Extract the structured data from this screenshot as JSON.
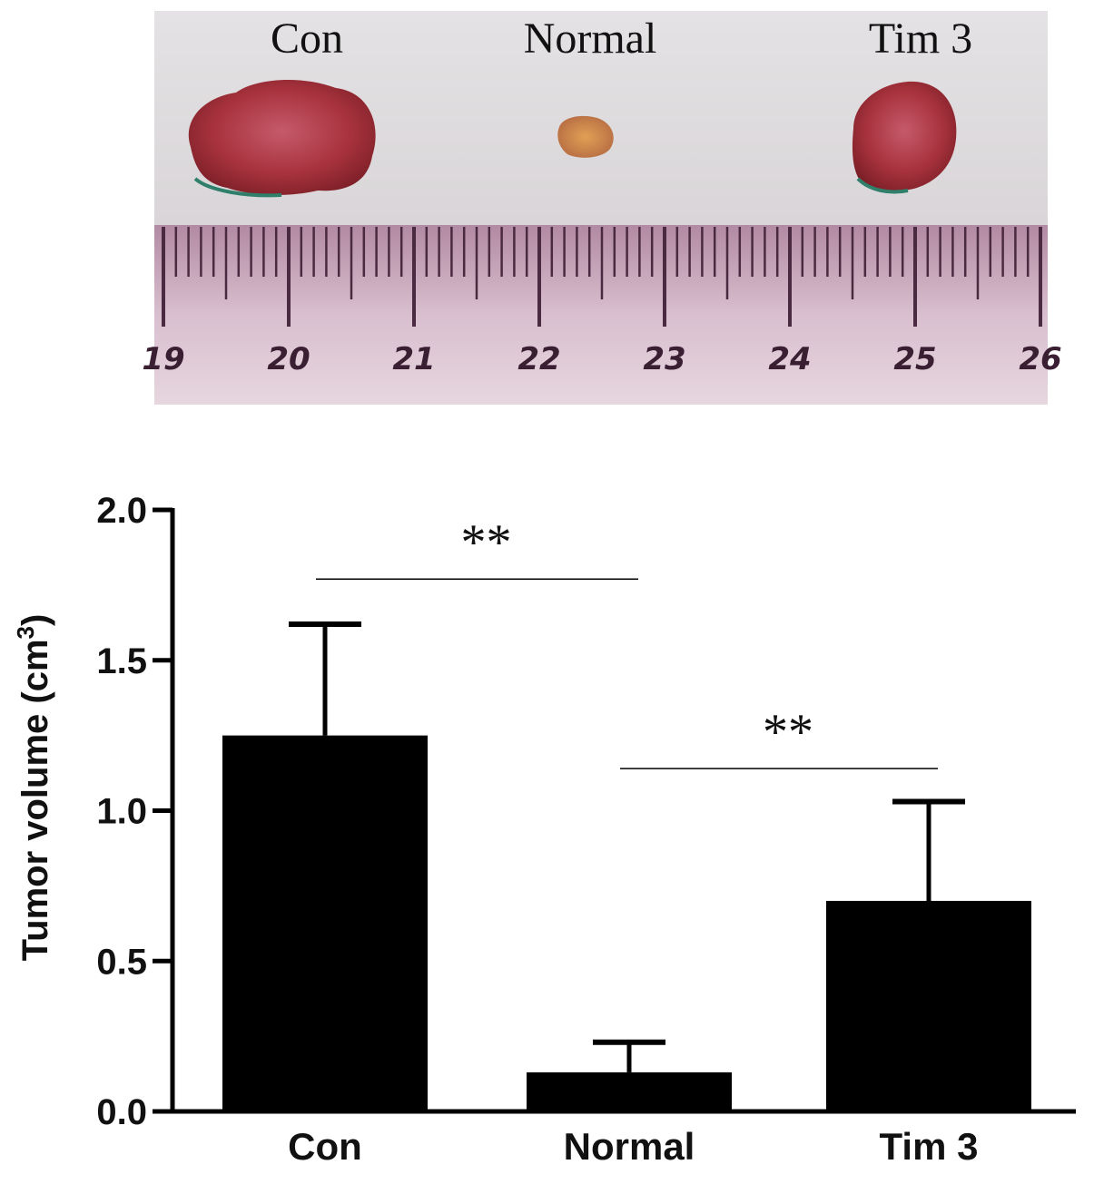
{
  "photo": {
    "labels": [
      "Con",
      "Normal",
      "Tim 3"
    ],
    "ruler_numbers": [
      "19",
      "20",
      "21",
      "22",
      "23",
      "24",
      "25",
      "26"
    ]
  },
  "chart_data": {
    "type": "bar",
    "categories": [
      "Con",
      "Normal",
      "Tim 3"
    ],
    "values": [
      1.25,
      0.13,
      0.7
    ],
    "errors": [
      0.37,
      0.1,
      0.33
    ],
    "ylabel": "Tumor volume (cm",
    "ylabel_sup": "3",
    "ylabel_close": ")",
    "ylim": [
      0,
      2.0
    ],
    "yticks": [
      "0.0",
      "0.5",
      "1.0",
      "1.5",
      "2.0"
    ],
    "ytick_values": [
      0,
      0.5,
      1.0,
      1.5,
      2.0
    ],
    "grid": false,
    "bar_color": "#000000",
    "significance": [
      {
        "from": 0,
        "to": 1,
        "label": "**",
        "y": 1.77
      },
      {
        "from": 1,
        "to": 2,
        "label": "**",
        "y": 1.14
      }
    ]
  }
}
